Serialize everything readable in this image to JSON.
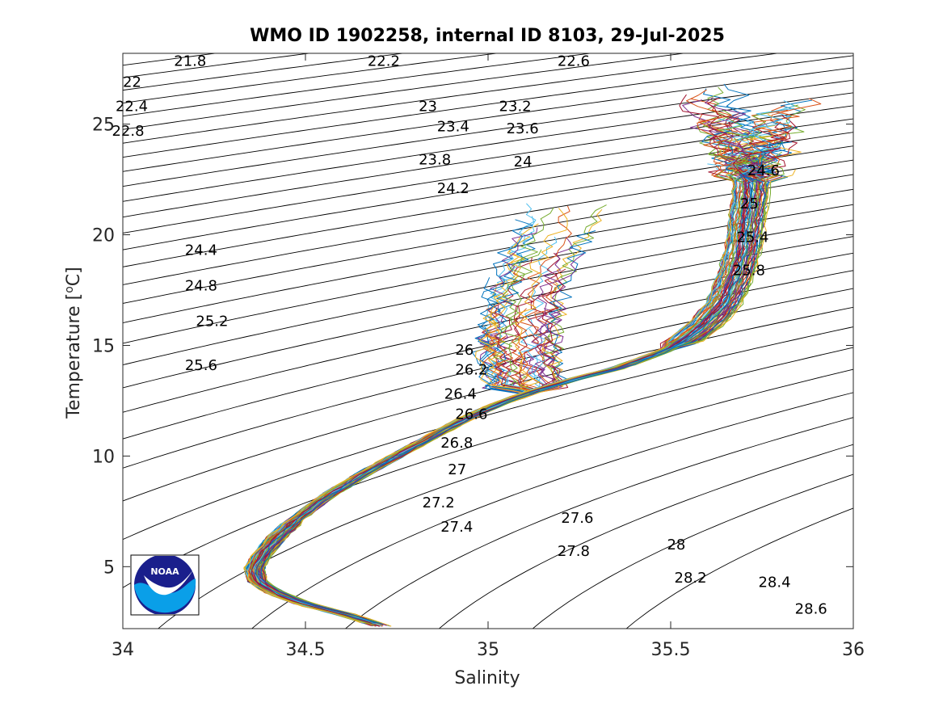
{
  "chart_data": {
    "type": "scatter",
    "title": "WMO ID 1902258, internal ID 8103, 29-Jul-2025",
    "xlabel": "Salinity",
    "ylabel": "Temperature [",
    "ylabel_sup": "o",
    "ylabel_end": "C]",
    "xlim": [
      34,
      36
    ],
    "ylim": [
      2.2,
      28.2
    ],
    "xticks": [
      "34",
      "34.5",
      "35",
      "35.5",
      "36"
    ],
    "xtick_values": [
      34,
      34.5,
      35,
      35.5,
      36
    ],
    "yticks": [
      "5",
      "10",
      "15",
      "20",
      "25"
    ],
    "ytick_values": [
      5,
      10,
      15,
      20,
      25
    ],
    "logo": {
      "text": "NOAA",
      "colors": {
        "navy": "#1a1f8c",
        "blue": "#0a9fe8"
      }
    },
    "density_isolines": {
      "from": 21.8,
      "to": 28.6,
      "step": 0.2,
      "color": "#000000",
      "labels": [
        {
          "text": "21.8",
          "sigma": 21.8,
          "x": 34.14,
          "y": 27.85
        },
        {
          "text": "22.2",
          "sigma": 22.2,
          "x": 34.67,
          "y": 27.85
        },
        {
          "text": "22.6",
          "sigma": 22.6,
          "x": 35.19,
          "y": 27.85
        },
        {
          "text": "22",
          "sigma": 22.0,
          "x": 34.0,
          "y": 26.9
        },
        {
          "text": "22.4",
          "sigma": 22.4,
          "x": 33.98,
          "y": 25.8
        },
        {
          "text": "22.8",
          "sigma": 22.8,
          "x": 33.97,
          "y": 24.7
        },
        {
          "text": "23",
          "sigma": 23.0,
          "x": 34.81,
          "y": 25.8
        },
        {
          "text": "23.2",
          "sigma": 23.2,
          "x": 35.03,
          "y": 25.8
        },
        {
          "text": "23.4",
          "sigma": 23.4,
          "x": 34.86,
          "y": 24.9
        },
        {
          "text": "23.6",
          "sigma": 23.6,
          "x": 35.05,
          "y": 24.8
        },
        {
          "text": "23.8",
          "sigma": 23.8,
          "x": 34.81,
          "y": 23.4
        },
        {
          "text": "24",
          "sigma": 24.0,
          "x": 35.07,
          "y": 23.3
        },
        {
          "text": "24.2",
          "sigma": 24.2,
          "x": 34.86,
          "y": 22.1
        },
        {
          "text": "24.4",
          "sigma": 24.4,
          "x": 34.17,
          "y": 19.3
        },
        {
          "text": "24.8",
          "sigma": 24.8,
          "x": 34.17,
          "y": 17.7
        },
        {
          "text": "25.2",
          "sigma": 25.2,
          "x": 34.2,
          "y": 16.1
        },
        {
          "text": "25.6",
          "sigma": 25.6,
          "x": 34.17,
          "y": 14.1
        },
        {
          "text": "24.6",
          "sigma": 24.6,
          "x": 35.71,
          "y": 22.9
        },
        {
          "text": "25",
          "sigma": 25.0,
          "x": 35.69,
          "y": 21.4
        },
        {
          "text": "25.4",
          "sigma": 25.4,
          "x": 35.68,
          "y": 19.9
        },
        {
          "text": "25.8",
          "sigma": 25.8,
          "x": 35.67,
          "y": 18.4
        },
        {
          "text": "26",
          "sigma": 26.0,
          "x": 34.91,
          "y": 14.8
        },
        {
          "text": "26.2",
          "sigma": 26.2,
          "x": 34.91,
          "y": 13.9
        },
        {
          "text": "26.4",
          "sigma": 26.4,
          "x": 34.88,
          "y": 12.8
        },
        {
          "text": "26.6",
          "sigma": 26.6,
          "x": 34.91,
          "y": 11.9
        },
        {
          "text": "26.8",
          "sigma": 26.8,
          "x": 34.87,
          "y": 10.6
        },
        {
          "text": "27",
          "sigma": 27.0,
          "x": 34.89,
          "y": 9.4
        },
        {
          "text": "27.2",
          "sigma": 27.2,
          "x": 34.82,
          "y": 7.9
        },
        {
          "text": "27.4",
          "sigma": 27.4,
          "x": 34.87,
          "y": 6.8
        },
        {
          "text": "27.6",
          "sigma": 27.6,
          "x": 35.2,
          "y": 7.2
        },
        {
          "text": "27.8",
          "sigma": 27.8,
          "x": 35.19,
          "y": 5.7
        },
        {
          "text": "28",
          "sigma": 28.0,
          "x": 35.49,
          "y": 6.0
        },
        {
          "text": "28.2",
          "sigma": 28.2,
          "x": 35.51,
          "y": 4.5
        },
        {
          "text": "28.4",
          "sigma": 28.4,
          "x": 35.74,
          "y": 4.3
        },
        {
          "text": "28.6",
          "sigma": 28.6,
          "x": 35.84,
          "y": 3.1
        }
      ]
    },
    "profiles": {
      "count": 120,
      "colors": [
        "#0072bd",
        "#d95319",
        "#edb120",
        "#7e2f8e",
        "#77ac30",
        "#4dbeee",
        "#a2142f"
      ],
      "spine": [
        {
          "T": 2.3,
          "S": 34.71
        },
        {
          "T": 2.8,
          "S": 34.62
        },
        {
          "T": 3.3,
          "S": 34.5
        },
        {
          "T": 3.8,
          "S": 34.42
        },
        {
          "T": 4.3,
          "S": 34.37
        },
        {
          "T": 4.9,
          "S": 34.36
        },
        {
          "T": 5.5,
          "S": 34.38
        },
        {
          "T": 6.3,
          "S": 34.42
        },
        {
          "T": 7.2,
          "S": 34.48
        },
        {
          "T": 8.2,
          "S": 34.56
        },
        {
          "T": 9.2,
          "S": 34.66
        },
        {
          "T": 10.2,
          "S": 34.77
        },
        {
          "T": 11.0,
          "S": 34.86
        },
        {
          "T": 11.7,
          "S": 34.94
        },
        {
          "T": 12.3,
          "S": 35.02
        },
        {
          "T": 12.9,
          "S": 35.12
        },
        {
          "T": 13.4,
          "S": 35.22
        },
        {
          "T": 14.0,
          "S": 35.36
        },
        {
          "T": 14.6,
          "S": 35.46
        },
        {
          "T": 15.2,
          "S": 35.54
        },
        {
          "T": 16.0,
          "S": 35.6
        },
        {
          "T": 17.0,
          "S": 35.65
        },
        {
          "T": 18.2,
          "S": 35.68
        },
        {
          "T": 19.4,
          "S": 35.7
        },
        {
          "T": 20.6,
          "S": 35.71
        },
        {
          "T": 21.8,
          "S": 35.72
        },
        {
          "T": 22.8,
          "S": 35.72
        }
      ],
      "branch": [
        {
          "T": 13.4,
          "S": 35.1
        },
        {
          "T": 14.5,
          "S": 35.08
        },
        {
          "T": 15.5,
          "S": 35.09
        },
        {
          "T": 16.5,
          "S": 35.1
        },
        {
          "T": 17.5,
          "S": 35.11
        },
        {
          "T": 18.5,
          "S": 35.13
        },
        {
          "T": 19.5,
          "S": 35.16
        },
        {
          "T": 20.5,
          "S": 35.2
        }
      ],
      "surface": {
        "T_min": 22.5,
        "T_max": 27.0,
        "S_min": 35.45,
        "S_max": 35.95
      }
    }
  }
}
